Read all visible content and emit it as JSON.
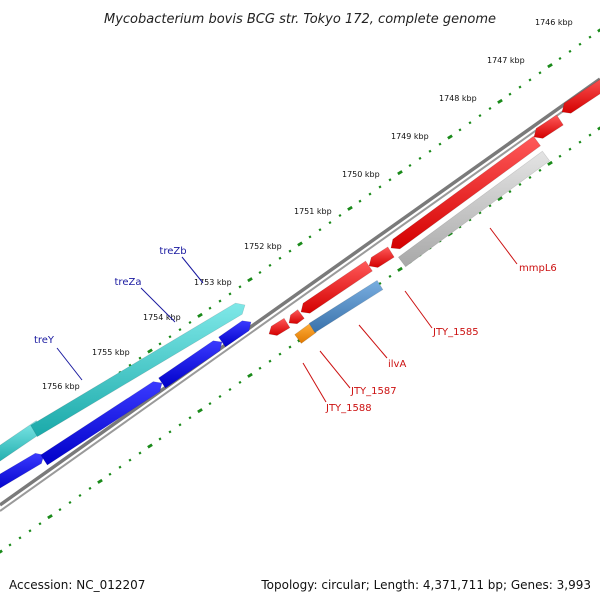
{
  "title": "Mycobacterium bovis BCG str. Tokyo 172, complete genome",
  "ticks": [
    {
      "label": "1746 kbp"
    },
    {
      "label": "1747 kbp"
    },
    {
      "label": "1748 kbp"
    },
    {
      "label": "1749 kbp"
    },
    {
      "label": "1750 kbp"
    },
    {
      "label": "1751 kbp"
    },
    {
      "label": "1752 kbp"
    },
    {
      "label": "1753 kbp"
    },
    {
      "label": "1754 kbp"
    },
    {
      "label": "1755 kbp"
    },
    {
      "label": "1756 kbp"
    }
  ],
  "gene_labels": [
    {
      "name": "treZb",
      "color": "#1a1aa0"
    },
    {
      "name": "treZa",
      "color": "#1a1aa0"
    },
    {
      "name": "treY",
      "color": "#1a1aa0"
    },
    {
      "name": "mmpL6",
      "color": "#cc1111"
    },
    {
      "name": "JTY_1585",
      "color": "#cc1111"
    },
    {
      "name": "ilvA",
      "color": "#cc1111"
    },
    {
      "name": "JTY_1587",
      "color": "#cc1111"
    },
    {
      "name": "JTY_1588",
      "color": "#cc1111"
    }
  ],
  "colors": {
    "forward_gene": "#ee0000",
    "cyan_feature": "#33c6c6",
    "blue_feature": "#0a0adc",
    "steel_feature": "#4a86c0",
    "orange_feature": "#ee8800",
    "gray_feature": "#bdbdbd",
    "backbone": "#7a7a7a",
    "tick_mark": "#1a8a1a"
  },
  "footer": {
    "accession": "Accession: NC_012207",
    "summary": "Topology: circular; Length: 4,371,711 bp; Genes: 3,993"
  }
}
